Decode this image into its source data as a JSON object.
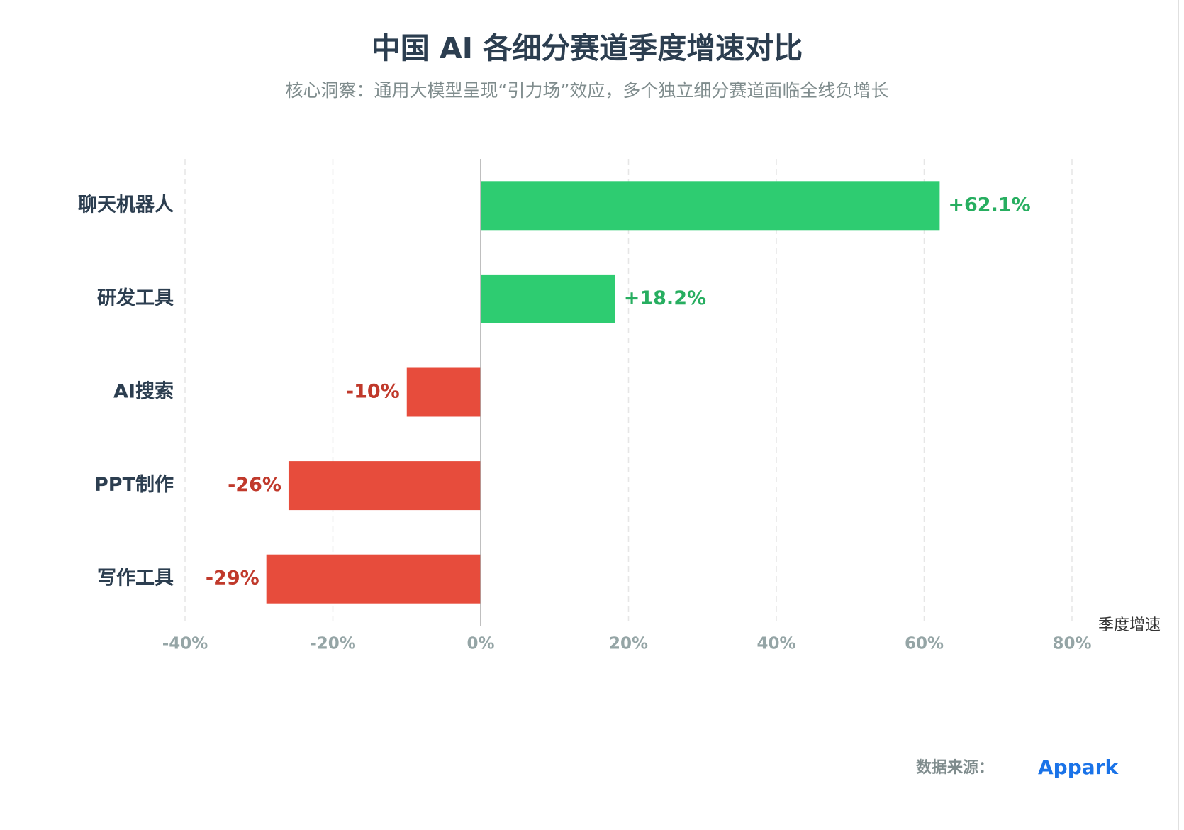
{
  "chart_data": {
    "type": "bar",
    "orientation": "horizontal",
    "title": "中国 AI 各细分赛道季度增速对比",
    "subtitle": "核心洞察：通用大模型呈现“引力场”效应，多个独立细分赛道面临全线负增长",
    "categories": [
      "聊天机器人",
      "研发工具",
      "AI搜索",
      "PPT制作",
      "写作工具"
    ],
    "values": [
      62.1,
      18.2,
      -10,
      -26,
      -29
    ],
    "value_labels": [
      "+62.1%",
      "+18.2%",
      "-10%",
      "-26%",
      "-29%"
    ],
    "positive_color": "#2ecc71",
    "negative_color": "#e74c3c",
    "positive_label_color": "#27ae60",
    "negative_label_color": "#c0392b",
    "xlabel": "季度增速",
    "xlim": [
      -40,
      80
    ],
    "xticks": [
      {
        "value": -40,
        "label": "-40%"
      },
      {
        "value": -20,
        "label": "-20%"
      },
      {
        "value": 0,
        "label": "0%"
      },
      {
        "value": 20,
        "label": "20%"
      },
      {
        "value": 40,
        "label": "40%"
      },
      {
        "value": 60,
        "label": "60%"
      },
      {
        "value": 80,
        "label": "80%"
      }
    ],
    "grid": true,
    "source_label": "数据来源：",
    "source": "Appark"
  }
}
